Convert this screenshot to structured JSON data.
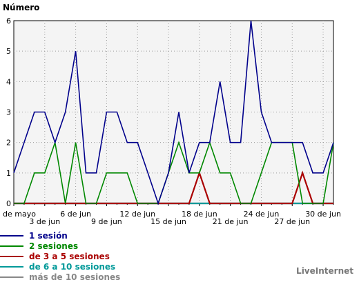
{
  "chart_data": {
    "type": "line",
    "ylabel": "Número",
    "ylim": [
      0,
      6
    ],
    "yticks": [
      0,
      1,
      2,
      3,
      4,
      5,
      6
    ],
    "x": [
      0,
      1,
      2,
      3,
      4,
      5,
      6,
      7,
      8,
      9,
      10,
      11,
      12,
      13,
      14,
      15,
      16,
      17,
      18,
      19,
      20,
      21,
      22,
      23,
      24,
      25,
      26,
      27,
      28,
      29,
      30,
      31
    ],
    "xticks": [
      {
        "index": 0,
        "label": "de mayo",
        "row": 0
      },
      {
        "index": 3,
        "label": "3 de jun",
        "row": 1
      },
      {
        "index": 6,
        "label": "6 de jun",
        "row": 0
      },
      {
        "index": 9,
        "label": "9 de jun",
        "row": 1
      },
      {
        "index": 12,
        "label": "12 de jun",
        "row": 0
      },
      {
        "index": 15,
        "label": "15 de jun",
        "row": 1
      },
      {
        "index": 18,
        "label": "18 de jun",
        "row": 0
      },
      {
        "index": 21,
        "label": "21 de jun",
        "row": 1
      },
      {
        "index": 24,
        "label": "24 de jun",
        "row": 0
      },
      {
        "index": 27,
        "label": "27 de jun",
        "row": 1
      },
      {
        "index": 30,
        "label": "30 de jun",
        "row": 0
      }
    ],
    "grid": true,
    "series": [
      {
        "name": "1 sesión",
        "color": "#00008b",
        "values": [
          1,
          2,
          3,
          3,
          2,
          3,
          5,
          1,
          1,
          3,
          3,
          2,
          2,
          1,
          0,
          1,
          3,
          1,
          2,
          2,
          4,
          2,
          2,
          6,
          3,
          2,
          2,
          2,
          2,
          1,
          1,
          2
        ]
      },
      {
        "name": "2 sesiones",
        "color": "#008800",
        "values": [
          0,
          0,
          1,
          1,
          2,
          0,
          2,
          0,
          0,
          1,
          1,
          1,
          0,
          0,
          0,
          1,
          2,
          1,
          1,
          2,
          1,
          1,
          0,
          0,
          1,
          2,
          2,
          2,
          0,
          0,
          0,
          2
        ]
      },
      {
        "name": "de 3 a 5 sesiones",
        "color": "#aa0000",
        "values": [
          0,
          0,
          0,
          0,
          0,
          0,
          0,
          0,
          0,
          0,
          0,
          0,
          0,
          0,
          0,
          0,
          0,
          0,
          1,
          0,
          0,
          0,
          0,
          0,
          0,
          0,
          0,
          0,
          1,
          0,
          0,
          0
        ]
      },
      {
        "name": "de 6 a 10 sesiones",
        "color": "#009999",
        "values": [
          0,
          0,
          0,
          0,
          0,
          0,
          0,
          0,
          0,
          0,
          0,
          0,
          0,
          0,
          0,
          0,
          0,
          0,
          0,
          0,
          0,
          0,
          0,
          0,
          0,
          0,
          0,
          0,
          0,
          0,
          0,
          0
        ]
      },
      {
        "name": "más de 10 sesiones",
        "color": "#888888",
        "values": [
          0,
          0,
          0,
          0,
          0,
          0,
          0,
          0,
          0,
          0,
          0,
          0,
          0,
          0,
          0,
          0,
          0,
          0,
          0,
          0,
          0,
          0,
          0,
          0,
          0,
          0,
          0,
          0,
          0,
          0,
          0,
          0
        ]
      }
    ]
  },
  "brand": "LiveInternet"
}
